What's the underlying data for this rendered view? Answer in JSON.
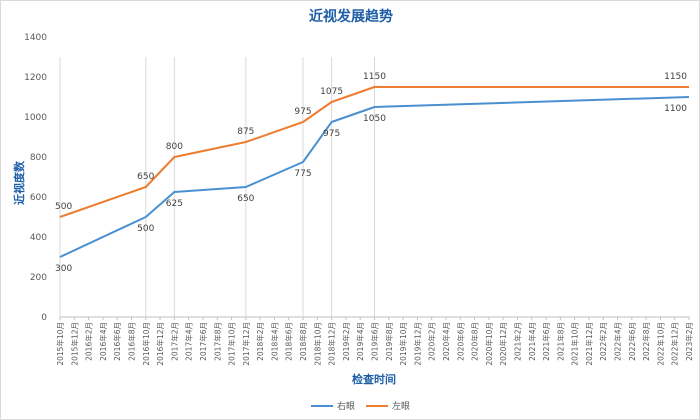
{
  "chart_data": {
    "type": "line",
    "title": "近视发展趋势",
    "xlabel": "检查时间",
    "ylabel": "近视度数",
    "ylim": [
      0,
      1400
    ],
    "yticks": [
      0,
      200,
      400,
      600,
      800,
      1000,
      1200,
      1400
    ],
    "grid": false,
    "legend_position": "bottom",
    "categories": [
      "2015年10月",
      "2015年12月",
      "2016年2月",
      "2016年4月",
      "2016年6月",
      "2016年8月",
      "2016年10月",
      "2016年12月",
      "2017年2月",
      "2017年4月",
      "2017年6月",
      "2017年8月",
      "2017年10月",
      "2017年12月",
      "2018年2月",
      "2018年4月",
      "2018年6月",
      "2018年8月",
      "2018年10月",
      "2018年12月",
      "2019年2月",
      "2019年4月",
      "2019年6月",
      "2019年8月",
      "2019年10月",
      "2019年12月",
      "2020年2月",
      "2020年4月",
      "2020年6月",
      "2020年8月",
      "2020年10月",
      "2020年12月",
      "2021年2月",
      "2021年4月",
      "2021年6月",
      "2021年8月",
      "2021年10月",
      "2021年12月",
      "2022年2月",
      "2022年4月",
      "2022年6月",
      "2022年8月",
      "2022年10月",
      "2022年12月",
      "2023年2月"
    ],
    "series": [
      {
        "name": "右眼",
        "color": "#4a90d0",
        "points": [
          {
            "x": "2015年10月",
            "y": 300,
            "label": "300"
          },
          {
            "x": "2016年10月",
            "y": 500,
            "label": "500"
          },
          {
            "x": "2017年2月",
            "y": 625,
            "label": "625"
          },
          {
            "x": "2017年12月",
            "y": 650,
            "label": "650"
          },
          {
            "x": "2018年8月",
            "y": 775,
            "label": "775"
          },
          {
            "x": "2018年12月",
            "y": 975,
            "label": "975"
          },
          {
            "x": "2019年6月",
            "y": 1050,
            "label": "1050"
          },
          {
            "x": "2023年2月",
            "y": 1100,
            "label": "1100"
          }
        ]
      },
      {
        "name": "左眼",
        "color": "#ed7d31",
        "points": [
          {
            "x": "2015年10月",
            "y": 500,
            "label": "500"
          },
          {
            "x": "2016年10月",
            "y": 650,
            "label": "650"
          },
          {
            "x": "2017年2月",
            "y": 800,
            "label": "800"
          },
          {
            "x": "2017年12月",
            "y": 875,
            "label": "875"
          },
          {
            "x": "2018年8月",
            "y": 975,
            "label": "975"
          },
          {
            "x": "2018年12月",
            "y": 1075,
            "label": "1075"
          },
          {
            "x": "2019年6月",
            "y": 1150,
            "label": "1150"
          },
          {
            "x": "2023年2月",
            "y": 1150,
            "label": "1150"
          }
        ]
      }
    ]
  }
}
